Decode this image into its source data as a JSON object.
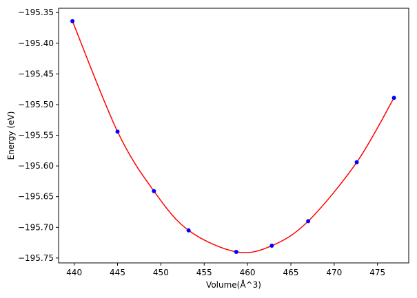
{
  "chart_data": {
    "type": "scatter",
    "xlabel": "Volume(Å^3)",
    "ylabel": "Energy (eV)",
    "xlim": [
      438.2,
      478.6
    ],
    "ylim": [
      -195.758,
      -195.343
    ],
    "x_ticks": [
      440,
      445,
      450,
      455,
      460,
      465,
      470,
      475
    ],
    "y_ticks": [
      -195.35,
      -195.4,
      -195.45,
      -195.5,
      -195.55,
      -195.6,
      -195.65,
      -195.7,
      -195.75
    ],
    "x_tick_labels": [
      "440",
      "445",
      "450",
      "455",
      "460",
      "465",
      "470",
      "475"
    ],
    "y_tick_labels": [
      "−195.35",
      "−195.40",
      "−195.45",
      "−195.50",
      "−195.55",
      "−195.60",
      "−195.65",
      "−195.70",
      "−195.75"
    ],
    "points": [
      {
        "x": 439.8,
        "y": -195.364
      },
      {
        "x": 445.0,
        "y": -195.544
      },
      {
        "x": 449.2,
        "y": -195.641
      },
      {
        "x": 453.2,
        "y": -195.705
      },
      {
        "x": 458.7,
        "y": -195.74
      },
      {
        "x": 462.8,
        "y": -195.73
      },
      {
        "x": 467.0,
        "y": -195.69
      },
      {
        "x": 472.6,
        "y": -195.594
      },
      {
        "x": 476.9,
        "y": -195.489
      }
    ],
    "fit": {
      "type": "line",
      "color": "#ff0000"
    },
    "point_color": "#0000ff",
    "grid": false,
    "legend": false
  }
}
